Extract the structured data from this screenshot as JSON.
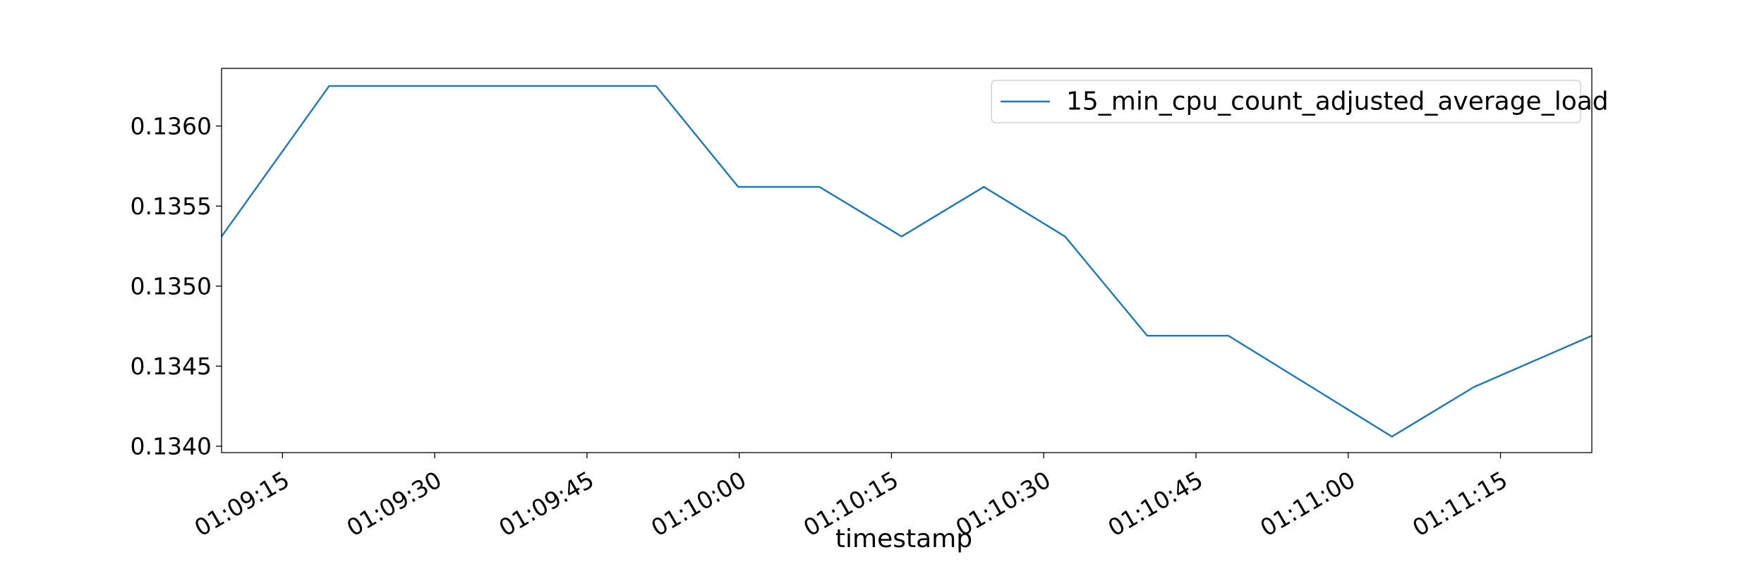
{
  "chart_data": {
    "type": "line",
    "title": "",
    "xlabel": "timestamp",
    "ylabel": "",
    "x_ticks": [
      "01:09:15",
      "01:09:30",
      "01:09:45",
      "01:10:00",
      "01:10:15",
      "01:10:30",
      "01:10:45",
      "01:11:00",
      "01:11:15"
    ],
    "y_ticks": [
      "0.1340",
      "0.1345",
      "0.1350",
      "0.1355",
      "0.1360"
    ],
    "xlim": [
      "01:09:09",
      "01:11:24"
    ],
    "ylim": [
      0.13396,
      0.13636
    ],
    "legend": {
      "placement": "top-right"
    },
    "grid": false,
    "series": [
      {
        "name": "15_min_cpu_count_adjusted_average_load",
        "color": "#1f77b4",
        "points": [
          {
            "x": "01:09:09",
            "y": 0.13531
          },
          {
            "x": "01:09:19.6",
            "y": 0.13625
          },
          {
            "x": "01:09:51.8",
            "y": 0.13625
          },
          {
            "x": "01:09:59.9",
            "y": 0.13562
          },
          {
            "x": "01:10:07.9",
            "y": 0.13562
          },
          {
            "x": "01:10:16",
            "y": 0.13531
          },
          {
            "x": "01:10:24.1",
            "y": 0.13562
          },
          {
            "x": "01:10:32.1",
            "y": 0.13531
          },
          {
            "x": "01:10:40.2",
            "y": 0.13469
          },
          {
            "x": "01:10:48.2",
            "y": 0.13469
          },
          {
            "x": "01:11:04.3",
            "y": 0.13406
          },
          {
            "x": "01:11:12.4",
            "y": 0.13437
          },
          {
            "x": "01:11:24",
            "y": 0.13469
          }
        ]
      }
    ]
  }
}
